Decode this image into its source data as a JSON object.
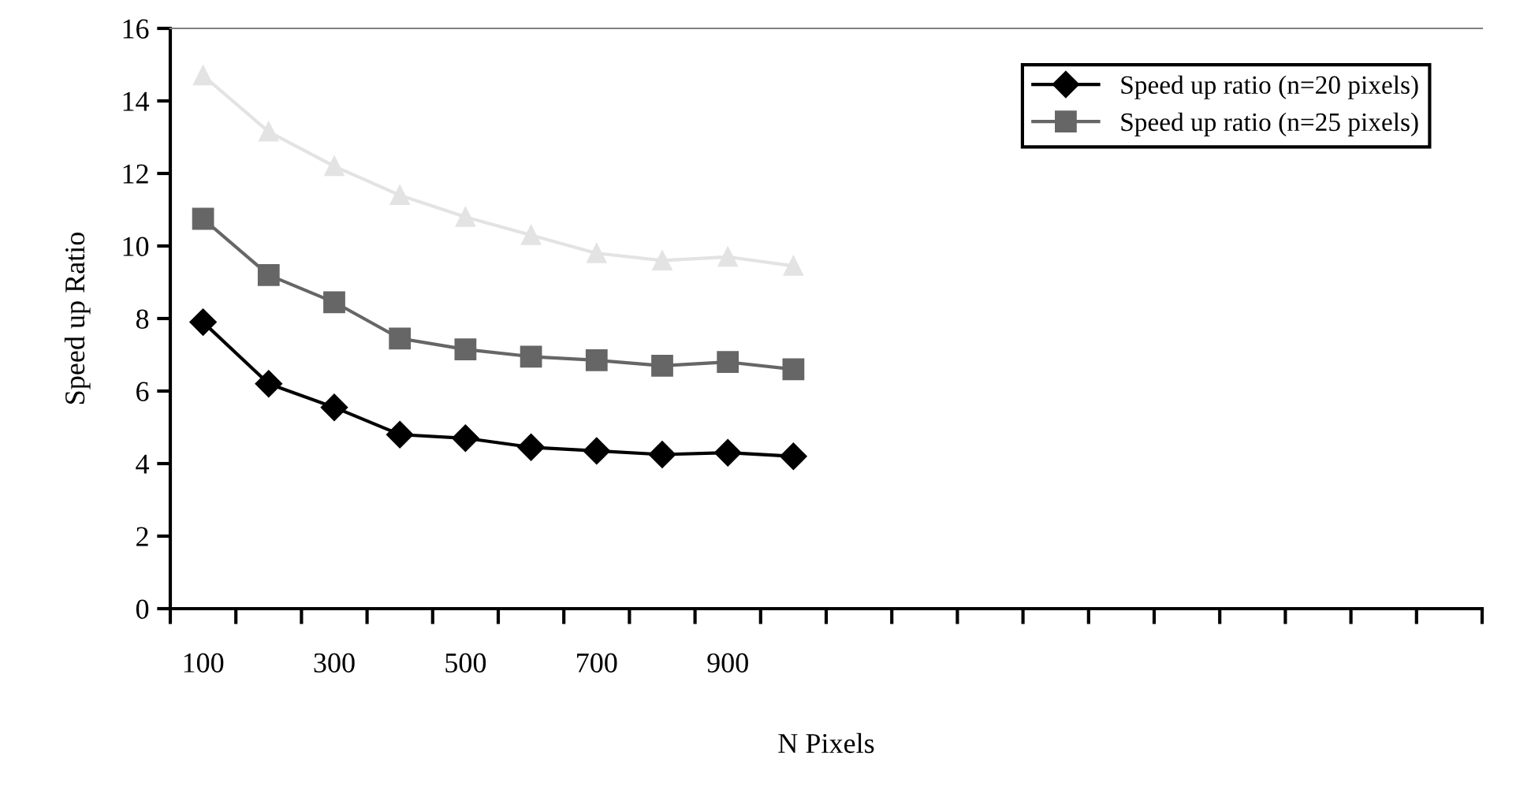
{
  "chart_data": {
    "type": "line",
    "xlabel": "N Pixels",
    "ylabel": "Speed up Ratio",
    "categories": [
      "100",
      null,
      "300",
      null,
      "500",
      null,
      "700",
      null,
      "900",
      null,
      null,
      null,
      null,
      null,
      null,
      null,
      null,
      null,
      null,
      null
    ],
    "series": [
      {
        "name": "Speed up ratio (n=20 pixels)",
        "color": "#000000",
        "marker": "diamond",
        "values": [
          7.9,
          6.2,
          5.55,
          4.8,
          4.7,
          4.45,
          4.35,
          4.25,
          4.3,
          4.2,
          null,
          null,
          null,
          null,
          null,
          null,
          null,
          null,
          null,
          null
        ]
      },
      {
        "name": "Speed up ratio (n=25 pixels)",
        "color": "#666666",
        "marker": "square",
        "values": [
          10.75,
          9.2,
          8.45,
          7.45,
          7.15,
          6.95,
          6.85,
          6.7,
          6.8,
          6.6,
          null,
          null,
          null,
          null,
          null,
          null,
          null,
          null,
          null,
          null
        ]
      },
      {
        "color": "#e3e3e3",
        "marker": "triangle",
        "values": [
          14.7,
          13.15,
          12.2,
          11.4,
          10.8,
          10.3,
          9.8,
          9.6,
          9.7,
          9.45,
          null,
          null,
          null,
          null,
          null,
          null,
          null,
          null,
          null,
          null
        ]
      }
    ],
    "ylim": [
      0,
      16
    ],
    "yticks": [
      0,
      2,
      4,
      6,
      8,
      10,
      12,
      14,
      16
    ],
    "grid": false,
    "legend": "top right"
  }
}
